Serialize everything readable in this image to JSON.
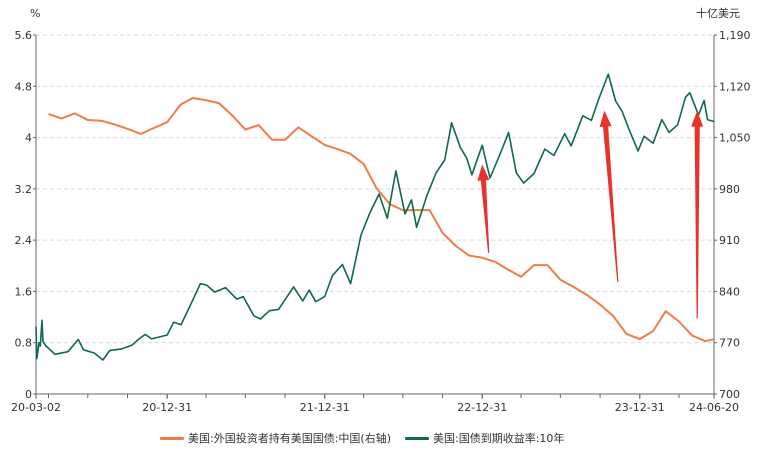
{
  "colors": {
    "holdings": "#ED7D4A",
    "yield": "#0F6B45",
    "arrow": "#E8332A",
    "grid": "#D9D9D9",
    "axis": "#666666"
  },
  "chart_data": {
    "type": "line",
    "left_unit": "%",
    "right_unit": "十亿美元",
    "x_tick_labels": [
      "20-03-02",
      "20-12-31",
      "21-12-31",
      "22-12-31",
      "23-12-31",
      "24-06-20"
    ],
    "x_tick_dates": [
      "2020-03-02",
      "2020-12-31",
      "2021-12-31",
      "2022-12-31",
      "2023-12-31",
      "2024-06-20"
    ],
    "x_range": [
      "2020-03-02",
      "2024-06-20"
    ],
    "left_axis": {
      "range": [
        0,
        5.6
      ],
      "ticks": [
        "0",
        "0.8",
        "1.6",
        "2.4",
        "3.2",
        "4",
        "4.8",
        "5.6"
      ]
    },
    "right_axis": {
      "range": [
        700,
        1190
      ],
      "ticks": [
        "700",
        "770",
        "840",
        "910",
        "980",
        "1,050",
        "1,120",
        "1,190"
      ]
    },
    "grid": true,
    "legend_position": "bottom",
    "series": [
      {
        "name": "美国:外国投资者持有美国国债:中国(右轴)",
        "axis": "right",
        "color": "#ED7D4A",
        "points": [
          [
            "2020-03-31",
            1082
          ],
          [
            "2020-04-30",
            1076
          ],
          [
            "2020-05-31",
            1083
          ],
          [
            "2020-06-30",
            1074
          ],
          [
            "2020-07-31",
            1073
          ],
          [
            "2020-08-31",
            1068
          ],
          [
            "2020-09-30",
            1062
          ],
          [
            "2020-10-31",
            1055
          ],
          [
            "2020-11-30",
            1063
          ],
          [
            "2020-12-31",
            1071
          ],
          [
            "2021-01-31",
            1095
          ],
          [
            "2021-02-28",
            1104
          ],
          [
            "2021-03-31",
            1101
          ],
          [
            "2021-04-30",
            1097
          ],
          [
            "2021-05-31",
            1080
          ],
          [
            "2021-06-30",
            1061
          ],
          [
            "2021-07-31",
            1067
          ],
          [
            "2021-08-31",
            1047
          ],
          [
            "2021-09-30",
            1047
          ],
          [
            "2021-10-31",
            1064
          ],
          [
            "2021-11-30",
            1052
          ],
          [
            "2021-12-31",
            1040
          ],
          [
            "2022-01-31",
            1034
          ],
          [
            "2022-02-28",
            1028
          ],
          [
            "2022-03-31",
            1014
          ],
          [
            "2022-04-30",
            981
          ],
          [
            "2022-05-31",
            959
          ],
          [
            "2022-06-30",
            951
          ],
          [
            "2022-07-31",
            951
          ],
          [
            "2022-08-31",
            951
          ],
          [
            "2022-09-30",
            920
          ],
          [
            "2022-10-31",
            902
          ],
          [
            "2022-11-30",
            889
          ],
          [
            "2022-12-31",
            886
          ],
          [
            "2023-01-31",
            880
          ],
          [
            "2023-02-28",
            870
          ],
          [
            "2023-03-31",
            860
          ],
          [
            "2023-04-30",
            876
          ],
          [
            "2023-05-31",
            876
          ],
          [
            "2023-06-30",
            856
          ],
          [
            "2023-07-31",
            846
          ],
          [
            "2023-08-31",
            835
          ],
          [
            "2023-09-30",
            822
          ],
          [
            "2023-10-31",
            806
          ],
          [
            "2023-11-30",
            782
          ],
          [
            "2023-12-31",
            775
          ],
          [
            "2024-01-31",
            786
          ],
          [
            "2024-02-29",
            813
          ],
          [
            "2024-03-31",
            799
          ],
          [
            "2024-04-30",
            780
          ],
          [
            "2024-05-31",
            772
          ],
          [
            "2024-06-20",
            775
          ]
        ]
      },
      {
        "name": "美国:国债到期收益率:10年",
        "axis": "left",
        "color": "#0F6B45",
        "points": [
          [
            "2020-03-02",
            1.05
          ],
          [
            "2020-03-04",
            0.55
          ],
          [
            "2020-03-09",
            0.8
          ],
          [
            "2020-03-12",
            0.75
          ],
          [
            "2020-03-16",
            1.15
          ],
          [
            "2020-03-18",
            0.82
          ],
          [
            "2020-03-25",
            0.75
          ],
          [
            "2020-04-15",
            0.62
          ],
          [
            "2020-05-15",
            0.66
          ],
          [
            "2020-06-08",
            0.85
          ],
          [
            "2020-06-20",
            0.69
          ],
          [
            "2020-07-15",
            0.64
          ],
          [
            "2020-08-04",
            0.53
          ],
          [
            "2020-08-20",
            0.68
          ],
          [
            "2020-09-15",
            0.7
          ],
          [
            "2020-10-10",
            0.76
          ],
          [
            "2020-10-25",
            0.85
          ],
          [
            "2020-11-10",
            0.93
          ],
          [
            "2020-11-25",
            0.86
          ],
          [
            "2020-12-31",
            0.92
          ],
          [
            "2021-01-15",
            1.12
          ],
          [
            "2021-02-01",
            1.08
          ],
          [
            "2021-02-25",
            1.42
          ],
          [
            "2021-03-18",
            1.72
          ],
          [
            "2021-04-01",
            1.7
          ],
          [
            "2021-04-20",
            1.59
          ],
          [
            "2021-05-15",
            1.66
          ],
          [
            "2021-06-10",
            1.48
          ],
          [
            "2021-06-25",
            1.52
          ],
          [
            "2021-07-20",
            1.22
          ],
          [
            "2021-08-04",
            1.17
          ],
          [
            "2021-08-25",
            1.3
          ],
          [
            "2021-09-15",
            1.32
          ],
          [
            "2021-10-20",
            1.67
          ],
          [
            "2021-11-10",
            1.45
          ],
          [
            "2021-11-25",
            1.62
          ],
          [
            "2021-12-10",
            1.44
          ],
          [
            "2021-12-31",
            1.52
          ],
          [
            "2022-01-18",
            1.85
          ],
          [
            "2022-02-10",
            2.02
          ],
          [
            "2022-03-01",
            1.72
          ],
          [
            "2022-03-25",
            2.48
          ],
          [
            "2022-04-15",
            2.83
          ],
          [
            "2022-05-06",
            3.12
          ],
          [
            "2022-05-25",
            2.74
          ],
          [
            "2022-06-14",
            3.48
          ],
          [
            "2022-07-05",
            2.81
          ],
          [
            "2022-07-20",
            3.03
          ],
          [
            "2022-08-01",
            2.6
          ],
          [
            "2022-08-25",
            3.1
          ],
          [
            "2022-09-15",
            3.45
          ],
          [
            "2022-10-05",
            3.65
          ],
          [
            "2022-10-21",
            4.23
          ],
          [
            "2022-11-10",
            3.85
          ],
          [
            "2022-11-25",
            3.68
          ],
          [
            "2022-12-07",
            3.42
          ],
          [
            "2022-12-31",
            3.88
          ],
          [
            "2023-01-18",
            3.37
          ],
          [
            "2023-02-15",
            3.82
          ],
          [
            "2023-03-02",
            4.08
          ],
          [
            "2023-03-20",
            3.45
          ],
          [
            "2023-04-06",
            3.29
          ],
          [
            "2023-04-30",
            3.44
          ],
          [
            "2023-05-25",
            3.82
          ],
          [
            "2023-06-15",
            3.72
          ],
          [
            "2023-07-10",
            4.06
          ],
          [
            "2023-07-25",
            3.87
          ],
          [
            "2023-08-21",
            4.34
          ],
          [
            "2023-09-10",
            4.27
          ],
          [
            "2023-09-28",
            4.62
          ],
          [
            "2023-10-19",
            4.99
          ],
          [
            "2023-11-05",
            4.57
          ],
          [
            "2023-11-20",
            4.41
          ],
          [
            "2023-12-05",
            4.15
          ],
          [
            "2023-12-27",
            3.79
          ],
          [
            "2024-01-10",
            4.02
          ],
          [
            "2024-01-31",
            3.91
          ],
          [
            "2024-02-20",
            4.28
          ],
          [
            "2024-03-08",
            4.08
          ],
          [
            "2024-03-28",
            4.2
          ],
          [
            "2024-04-15",
            4.63
          ],
          [
            "2024-04-25",
            4.7
          ],
          [
            "2024-05-15",
            4.35
          ],
          [
            "2024-05-28",
            4.58
          ],
          [
            "2024-06-05",
            4.28
          ],
          [
            "2024-06-20",
            4.25
          ]
        ]
      }
    ],
    "annotations": [
      {
        "type": "arrow",
        "color": "#E8332A",
        "from": [
          "2023-01-15",
          2.2
        ],
        "to": [
          "2022-12-31",
          3.58
        ]
      },
      {
        "type": "arrow",
        "color": "#E8332A",
        "from": [
          "2023-11-10",
          1.75
        ],
        "to": [
          "2023-10-10",
          4.42
        ]
      },
      {
        "type": "arrow",
        "color": "#E8332A",
        "from": [
          "2024-05-12",
          1.18
        ],
        "to": [
          "2024-05-12",
          4.42
        ]
      }
    ]
  }
}
